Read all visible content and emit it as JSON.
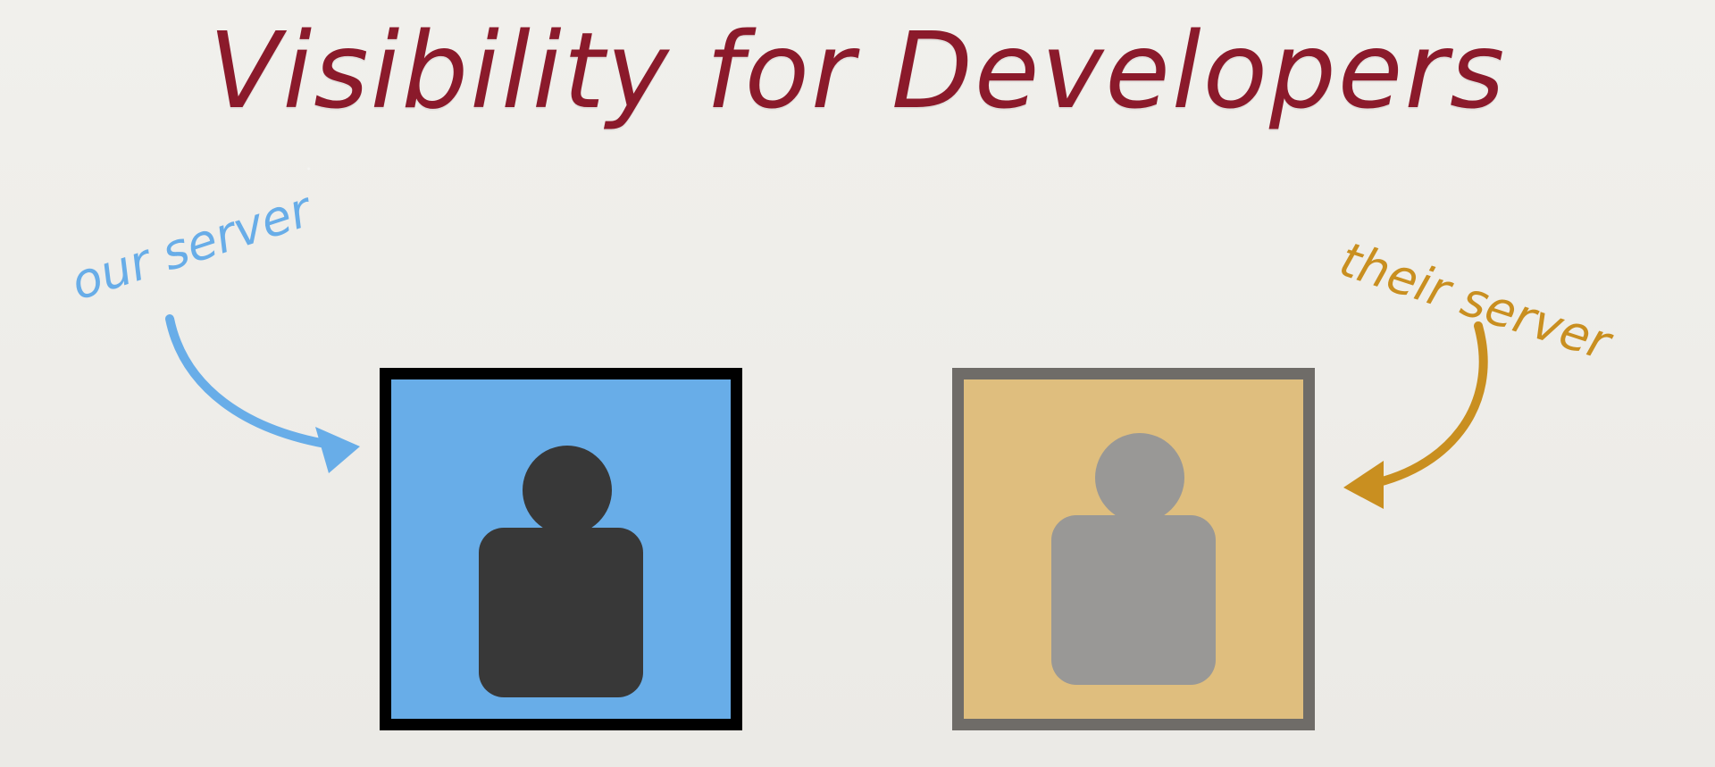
{
  "title": "Visibility for Developers",
  "labels": {
    "left": "our server",
    "right": "their server"
  },
  "colors": {
    "title": "#8b1a2b",
    "left_accent": "#68ade8",
    "right_accent": "#c98f20",
    "left_box": "#68ade8",
    "right_box": "#dfbe7e",
    "left_border": "#000000",
    "right_border": "#6f6c68",
    "left_person": "#383838",
    "right_person": "#999896"
  },
  "icons": {
    "left_arrow": "curved-arrow-right",
    "right_arrow": "curved-arrow-left",
    "person": "person-icon"
  }
}
